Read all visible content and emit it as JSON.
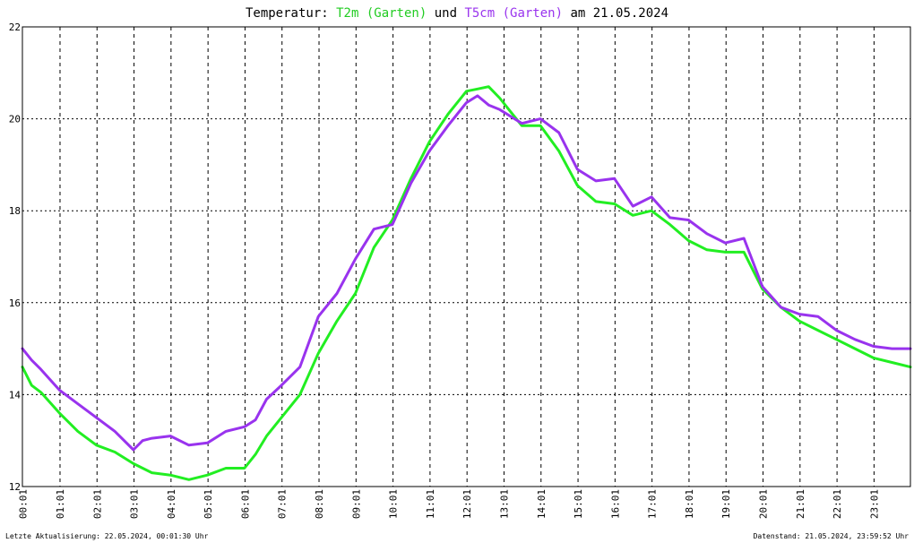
{
  "chart_data": {
    "type": "line",
    "title": {
      "prefix": "Temperatur: ",
      "series1": "T2m (Garten)",
      "connector": " und ",
      "series2": "T5cm (Garten)",
      "suffix": " am 21.05.2024"
    },
    "xlabel": "",
    "ylabel": "",
    "ylim": [
      12,
      22
    ],
    "yticks": [
      12,
      14,
      16,
      18,
      20,
      22
    ],
    "xlim": [
      0,
      24
    ],
    "xticks": [
      "00:01",
      "01:01",
      "02:01",
      "03:01",
      "04:01",
      "05:01",
      "06:01",
      "07:01",
      "08:01",
      "09:01",
      "10:01",
      "11:01",
      "12:01",
      "13:01",
      "14:01",
      "15:01",
      "16:01",
      "17:01",
      "18:01",
      "19:01",
      "20:01",
      "21:01",
      "22:01",
      "23:01"
    ],
    "grid": true,
    "colors": {
      "T2m (Garten)": "#22ee22",
      "T5cm (Garten)": "#9933ee"
    },
    "series": [
      {
        "name": "T2m (Garten)",
        "x": [
          0,
          0.25,
          0.5,
          1,
          1.5,
          2,
          2.5,
          3,
          3.5,
          4,
          4.5,
          5,
          5.5,
          6,
          6.3,
          6.6,
          7,
          7.5,
          8,
          8.5,
          9,
          9.5,
          10,
          10.5,
          11,
          11.5,
          12,
          12.3,
          12.6,
          12.9,
          13.2,
          13.5,
          14,
          14.5,
          15,
          15.5,
          16,
          16.5,
          17,
          17.5,
          18,
          18.5,
          19,
          19.5,
          20,
          20.5,
          21,
          21.5,
          22,
          22.5,
          23,
          23.5,
          24
        ],
        "values": [
          14.6,
          14.2,
          14.05,
          13.6,
          13.2,
          12.9,
          12.75,
          12.5,
          12.3,
          12.25,
          12.15,
          12.25,
          12.4,
          12.4,
          12.7,
          13.1,
          13.5,
          14.0,
          14.9,
          15.6,
          16.2,
          17.2,
          17.8,
          18.7,
          19.5,
          20.1,
          20.6,
          20.65,
          20.7,
          20.45,
          20.15,
          19.85,
          19.85,
          19.3,
          18.55,
          18.2,
          18.15,
          17.9,
          18.0,
          17.7,
          17.35,
          17.15,
          17.1,
          17.1,
          16.3,
          15.9,
          15.6,
          15.4,
          15.2,
          15.0,
          14.8,
          14.7,
          14.6
        ]
      },
      {
        "name": "T5cm (Garten)",
        "x": [
          0,
          0.25,
          0.5,
          1,
          1.5,
          2,
          2.5,
          3,
          3.25,
          3.5,
          4,
          4.5,
          5,
          5.5,
          6,
          6.3,
          6.6,
          7,
          7.5,
          8,
          8.5,
          9,
          9.5,
          10,
          10.5,
          11,
          11.5,
          12,
          12.3,
          12.6,
          12.9,
          13.2,
          13.5,
          14,
          14.5,
          15,
          15.5,
          16,
          16.5,
          17,
          17.5,
          18,
          18.5,
          19,
          19.5,
          20,
          20.5,
          21,
          21.5,
          22,
          22.5,
          23,
          23.5,
          24
        ],
        "values": [
          15.0,
          14.75,
          14.55,
          14.1,
          13.8,
          13.5,
          13.2,
          12.8,
          13.0,
          13.05,
          13.1,
          12.9,
          12.95,
          13.2,
          13.3,
          13.45,
          13.9,
          14.2,
          14.6,
          15.7,
          16.2,
          16.95,
          17.6,
          17.7,
          18.6,
          19.3,
          19.85,
          20.35,
          20.5,
          20.3,
          20.2,
          20.05,
          19.9,
          20.0,
          19.7,
          18.9,
          18.65,
          18.7,
          18.1,
          18.3,
          17.85,
          17.8,
          17.5,
          17.3,
          17.4,
          16.35,
          15.9,
          15.75,
          15.7,
          15.4,
          15.2,
          15.05,
          15.0,
          15.0
        ]
      }
    ]
  },
  "footer": {
    "left": "Letzte Aktualisierung: 22.05.2024, 00:01:30 Uhr",
    "right": "Datenstand: 21.05.2024, 23:59:52 Uhr"
  }
}
